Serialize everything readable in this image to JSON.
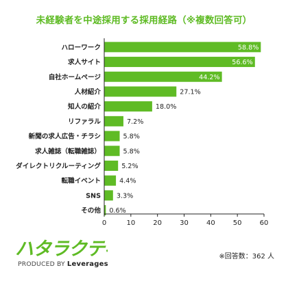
{
  "title": "未経験者を中途採用する採用経路（※複数回答可）",
  "note": "※回答数：362 人",
  "logo": {
    "text": "ハタラクティブ",
    "produced_by": "PRODUCED BY",
    "brand": "Leverages",
    "color": "#5fbb25"
  },
  "chart_data": {
    "type": "bar",
    "orientation": "horizontal",
    "title": "未経験者を中途採用する採用経路（※複数回答可）",
    "categories": [
      "ハローワーク",
      "求人サイト",
      "自社ホームページ",
      "人材紹介",
      "知人の紹介",
      "リファラル",
      "新聞の求人広告・チラシ",
      "求人雑誌（転職雑誌）",
      "ダイレクトリクルーティング",
      "転職イベント",
      "SNS",
      "その他"
    ],
    "values": [
      58.8,
      56.6,
      44.2,
      27.1,
      18.0,
      7.2,
      5.8,
      5.8,
      5.2,
      4.4,
      3.3,
      0.6
    ],
    "value_labels": [
      "58.8%",
      "56.6%",
      "44.2%",
      "27.1%",
      "18.0%",
      "7.2%",
      "5.8%",
      "5.8%",
      "5.2%",
      "4.4%",
      "3.3%",
      "0.6%"
    ],
    "xlim": [
      0,
      60
    ],
    "xticks": [
      "0",
      "10",
      "20",
      "30",
      "40",
      "50",
      "60"
    ],
    "bar_color": "#5fbb25",
    "grid": false
  }
}
